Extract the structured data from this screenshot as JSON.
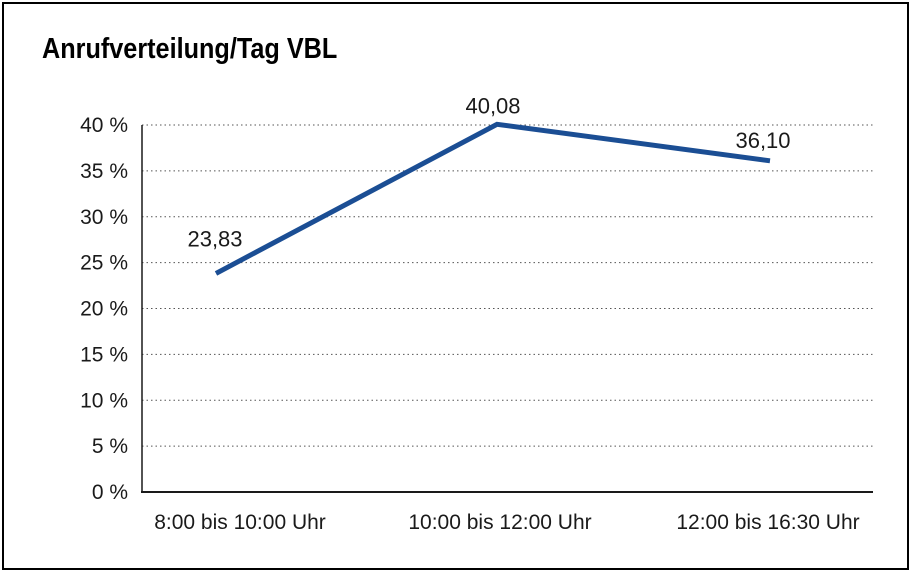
{
  "chart_data": {
    "type": "line",
    "title": "Anrufverteilung/Tag VBL",
    "categories": [
      "8:00 bis 10:00 Uhr",
      "10:00 bis 12:00 Uhr",
      "12:00 bis 16:30 Uhr"
    ],
    "series": [
      {
        "values": [
          23.83,
          40.08,
          36.1
        ],
        "value_labels": [
          "23,83",
          "40,08",
          "36,10"
        ],
        "color": "#1B4E94",
        "line_width": 5
      }
    ],
    "xlabel": "",
    "ylabel": "",
    "ylim": [
      0,
      40
    ],
    "y_tick_step": 5,
    "y_tick_labels": [
      "0 %",
      "5 %",
      "10 %",
      "15 %",
      "20 %",
      "25 %",
      "30 %",
      "35 %",
      "40 %"
    ],
    "grid": "horizontal-dotted",
    "legend": "none",
    "colors": {
      "line": "#1B4E94",
      "text": "#1a1a1a",
      "gridline": "#555555",
      "axis": "#1a1a1a",
      "frame_border": "#000000",
      "background": "#ffffff"
    }
  }
}
